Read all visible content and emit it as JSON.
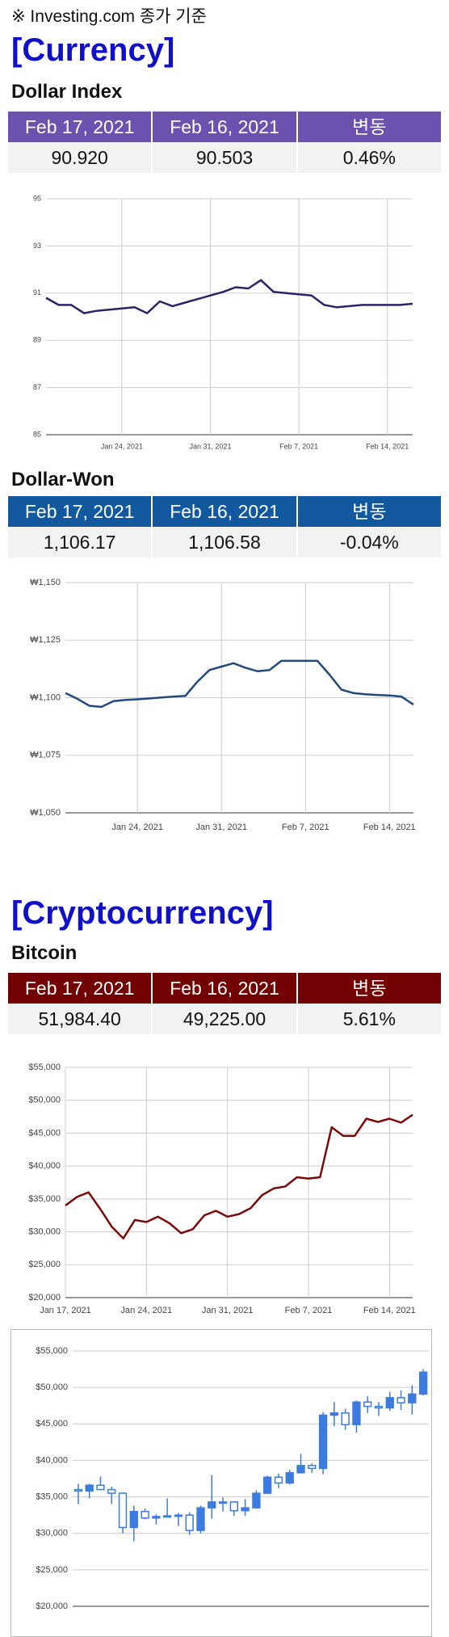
{
  "header": {
    "note": "※ Investing.com 종가 기준"
  },
  "sections": [
    "[Currency]",
    "[Cryptocurrency]"
  ],
  "tables": [
    {
      "title": "Dollar Index",
      "header": [
        "Feb 17, 2021",
        "Feb 16, 2021",
        "변동"
      ],
      "row": [
        "90.920",
        "90.503",
        "0.46%"
      ],
      "color": "#6b52ae"
    },
    {
      "title": "Dollar-Won",
      "header": [
        "Feb 17, 2021",
        "Feb 16, 2021",
        "변동"
      ],
      "row": [
        "1,106.17",
        "1,106.58",
        "-0.04%"
      ],
      "color": "#12589e"
    },
    {
      "title": "Bitcoin",
      "header": [
        "Feb 17, 2021",
        "Feb 16, 2021",
        "변동"
      ],
      "row": [
        "51,984.40",
        "49,225.00",
        "5.61%"
      ],
      "color": "#720000"
    }
  ],
  "chart_data": [
    {
      "type": "line",
      "color": "#2e2266",
      "grid": true,
      "x": [
        "2021-01-18",
        "2021-01-19",
        "2021-01-20",
        "2021-01-21",
        "2021-01-22",
        "2021-01-23",
        "2021-01-24",
        "2021-01-25",
        "2021-01-26",
        "2021-01-27",
        "2021-01-28",
        "2021-01-29",
        "2021-01-30",
        "2021-01-31",
        "2021-02-01",
        "2021-02-02",
        "2021-02-03",
        "2021-02-04",
        "2021-02-05",
        "2021-02-06",
        "2021-02-07",
        "2021-02-08",
        "2021-02-09",
        "2021-02-10",
        "2021-02-11",
        "2021-02-12",
        "2021-02-13",
        "2021-02-14",
        "2021-02-15",
        "2021-02-16"
      ],
      "values": [
        90.8,
        90.5,
        90.5,
        90.15,
        90.25,
        90.3,
        90.35,
        90.4,
        90.15,
        90.65,
        90.45,
        90.6,
        90.75,
        90.9,
        91.05,
        91.25,
        91.2,
        91.55,
        91.05,
        91.0,
        90.95,
        90.9,
        90.5,
        90.4,
        90.45,
        90.5,
        90.5,
        90.5,
        90.5,
        90.55
      ],
      "xlim": [
        "2021-01-18",
        "2021-02-16"
      ],
      "xticks": [
        {
          "value": "2021-01-24",
          "label": "Jan 24, 2021"
        },
        {
          "value": "2021-01-31",
          "label": "Jan 31, 2021"
        },
        {
          "value": "2021-02-07",
          "label": "Feb 7, 2021"
        },
        {
          "value": "2021-02-14",
          "label": "Feb 14, 2021"
        }
      ],
      "ylim": [
        85,
        95
      ],
      "yticks": [
        85,
        87,
        89,
        91,
        93,
        95
      ]
    },
    {
      "type": "line",
      "color": "#22497e",
      "grid": true,
      "x": [
        "2021-01-18",
        "2021-01-19",
        "2021-01-20",
        "2021-01-21",
        "2021-01-22",
        "2021-01-23",
        "2021-01-24",
        "2021-01-25",
        "2021-01-26",
        "2021-01-27",
        "2021-01-28",
        "2021-01-29",
        "2021-01-30",
        "2021-01-31",
        "2021-02-01",
        "2021-02-02",
        "2021-02-03",
        "2021-02-04",
        "2021-02-05",
        "2021-02-06",
        "2021-02-07",
        "2021-02-08",
        "2021-02-09",
        "2021-02-10",
        "2021-02-11",
        "2021-02-12",
        "2021-02-13",
        "2021-02-14",
        "2021-02-15",
        "2021-02-16"
      ],
      "values": [
        1102,
        1099.5,
        1096.5,
        1096,
        1098.5,
        1099,
        1099.3,
        1099.7,
        1100.1,
        1100.5,
        1100.8,
        1107,
        1112,
        1113.5,
        1115,
        1113,
        1111.5,
        1112,
        1116,
        1116,
        1116,
        1116,
        1110,
        1103.5,
        1102,
        1101.5,
        1101.2,
        1101,
        1100.5,
        1097
      ],
      "xlim": [
        "2021-01-18",
        "2021-02-16"
      ],
      "xticks": [
        {
          "value": "2021-01-24",
          "label": "Jan 24, 2021"
        },
        {
          "value": "2021-01-31",
          "label": "Jan 31, 2021"
        },
        {
          "value": "2021-02-07",
          "label": "Feb 7, 2021"
        },
        {
          "value": "2021-02-14",
          "label": "Feb 14, 2021"
        }
      ],
      "ylim": [
        1050,
        1150
      ],
      "yticks": [
        {
          "value": 1050,
          "label": "₩1,050"
        },
        {
          "value": 1075,
          "label": "₩1,075"
        },
        {
          "value": 1100,
          "label": "₩1,100"
        },
        {
          "value": 1125,
          "label": "₩1,125"
        },
        {
          "value": 1150,
          "label": "₩1,150"
        }
      ]
    },
    {
      "type": "line",
      "color": "#7a0a0a",
      "grid": true,
      "x": [
        "2021-01-17",
        "2021-01-18",
        "2021-01-19",
        "2021-01-20",
        "2021-01-21",
        "2021-01-22",
        "2021-01-23",
        "2021-01-24",
        "2021-01-25",
        "2021-01-26",
        "2021-01-27",
        "2021-01-28",
        "2021-01-29",
        "2021-01-30",
        "2021-01-31",
        "2021-02-01",
        "2021-02-02",
        "2021-02-03",
        "2021-02-04",
        "2021-02-05",
        "2021-02-06",
        "2021-02-07",
        "2021-02-08",
        "2021-02-09",
        "2021-02-10",
        "2021-02-11",
        "2021-02-12",
        "2021-02-13",
        "2021-02-14",
        "2021-02-15",
        "2021-02-16"
      ],
      "values": [
        34000,
        35300,
        36000,
        33500,
        30800,
        29000,
        31800,
        31500,
        32300,
        31300,
        29800,
        30400,
        32500,
        33200,
        32300,
        32700,
        33600,
        35600,
        36600,
        36900,
        38300,
        38100,
        38300,
        45900,
        44600,
        44600,
        47200,
        46700,
        47200,
        46600,
        47800
      ],
      "xlim": [
        "2021-01-17",
        "2021-02-16"
      ],
      "xticks": [
        {
          "value": "2021-01-17",
          "label": "Jan 17, 2021"
        },
        {
          "value": "2021-01-24",
          "label": "Jan 24, 2021"
        },
        {
          "value": "2021-01-31",
          "label": "Jan 31, 2021"
        },
        {
          "value": "2021-02-07",
          "label": "Feb 7, 2021"
        },
        {
          "value": "2021-02-14",
          "label": "Feb 14, 2021"
        }
      ],
      "ylim": [
        20000,
        55000
      ],
      "yticks": [
        {
          "value": 20000,
          "label": "$20,000"
        },
        {
          "value": 25000,
          "label": "$25,000"
        },
        {
          "value": 30000,
          "label": "$30,000"
        },
        {
          "value": 35000,
          "label": "$35,000"
        },
        {
          "value": 40000,
          "label": "$40,000"
        },
        {
          "value": 45000,
          "label": "$45,000"
        },
        {
          "value": 50000,
          "label": "$50,000"
        },
        {
          "value": 55000,
          "label": "$55,000"
        }
      ]
    },
    {
      "type": "candlestick",
      "color": "#3c7be0",
      "grid": true,
      "open": [
        36000,
        35800,
        36600,
        36000,
        35500,
        30800,
        33000,
        32100,
        32300,
        32400,
        32500,
        30400,
        33500,
        34300,
        34300,
        33100,
        33500,
        35500,
        37700,
        36900,
        38300,
        39300,
        38900,
        46200,
        46500,
        44900,
        48000,
        47400,
        47200,
        48600,
        47900,
        49100
      ],
      "high": [
        36800,
        36800,
        37800,
        36400,
        35600,
        33800,
        33400,
        32600,
        34800,
        32800,
        32900,
        33800,
        38000,
        34900,
        34400,
        34700,
        35900,
        37900,
        38200,
        38700,
        40900,
        39600,
        46600,
        48000,
        47100,
        48200,
        48800,
        48000,
        49400,
        49600,
        50300,
        52500
      ],
      "low": [
        34000,
        34800,
        35900,
        34000,
        30000,
        28900,
        31900,
        31200,
        32200,
        31000,
        29800,
        30000,
        32000,
        33000,
        32400,
        32400,
        33400,
        35400,
        36200,
        36700,
        38200,
        38300,
        38100,
        44700,
        44200,
        43800,
        46500,
        46100,
        46800,
        46900,
        46300,
        48900
      ],
      "close": [
        35800,
        36600,
        36000,
        35500,
        30800,
        33000,
        32100,
        32300,
        32400,
        32500,
        30400,
        33500,
        34300,
        34300,
        33100,
        33500,
        35500,
        37700,
        36900,
        38300,
        39300,
        38900,
        46200,
        46500,
        44900,
        48000,
        47400,
        47200,
        48600,
        47900,
        49100,
        52100
      ],
      "ylim": [
        20000,
        55000
      ],
      "yticks": [
        {
          "value": 20000,
          "label": "$20,000"
        },
        {
          "value": 25000,
          "label": "$25,000"
        },
        {
          "value": 30000,
          "label": "$30,000"
        },
        {
          "value": 35000,
          "label": "$35,000"
        },
        {
          "value": 40000,
          "label": "$40,000"
        },
        {
          "value": 45000,
          "label": "$45,000"
        },
        {
          "value": 50000,
          "label": "$50,000"
        },
        {
          "value": 55000,
          "label": "$55,000"
        }
      ]
    }
  ]
}
